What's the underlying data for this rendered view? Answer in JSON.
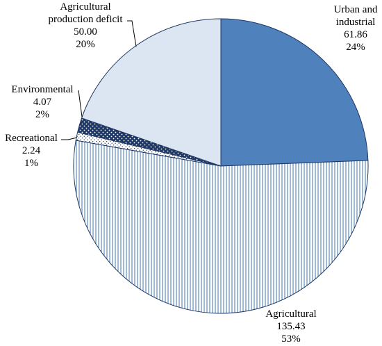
{
  "chart_data": {
    "type": "pie",
    "title": "",
    "slices": [
      {
        "name": "Urban and industrial",
        "value": 61.86,
        "percent": "24%",
        "value_label": "61.86",
        "name_lines": [
          "Urban and",
          "industrial"
        ],
        "fill": "solid",
        "color": "#4f81bd"
      },
      {
        "name": "Agricultural",
        "value": 135.43,
        "percent": "53%",
        "value_label": "135.43",
        "name_lines": [
          "Agricultural"
        ],
        "fill": "vertical-lines",
        "color": "#4f81bd"
      },
      {
        "name": "Recreational",
        "value": 2.24,
        "percent": "1%",
        "value_label": "2.24",
        "name_lines": [
          "Recreational"
        ],
        "fill": "light-dots",
        "color": "#1f3864"
      },
      {
        "name": "Environmental",
        "value": 4.07,
        "percent": "2%",
        "value_label": "4.07",
        "name_lines": [
          "Environmental"
        ],
        "fill": "dark-dots",
        "color": "#1f3864"
      },
      {
        "name": "Agricultural production deficit",
        "value": 50.0,
        "percent": "20%",
        "value_label": "50.00",
        "name_lines": [
          "Agricultural",
          "production deficit"
        ],
        "fill": "solid",
        "color": "#dce6f2"
      }
    ],
    "start_angle": "12 o'clock",
    "direction": "clockwise",
    "border_color": "#1f3864"
  }
}
